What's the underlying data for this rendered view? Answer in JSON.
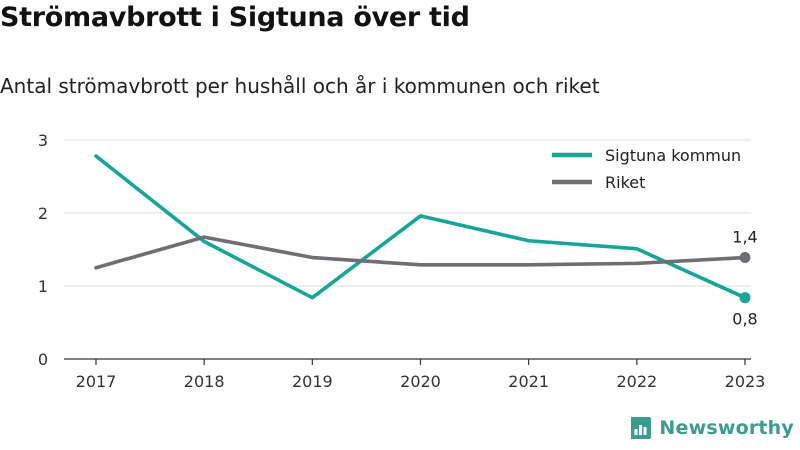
{
  "header": {
    "title": "Strömavbrott i Sigtuna över tid",
    "subtitle": "Antal strömavbrott per hushåll och år i kommunen och riket"
  },
  "brand": {
    "name": "Newsworthy",
    "icon": "newsworthy-logo-icon",
    "color": "#3c9d8f"
  },
  "chart_data": {
    "type": "line",
    "categories": [
      "2017",
      "2018",
      "2019",
      "2020",
      "2021",
      "2022",
      "2023"
    ],
    "series": [
      {
        "name": "Sigtuna kommun",
        "color": "#14a697",
        "values": [
          2.78,
          1.61,
          0.84,
          1.96,
          1.62,
          1.51,
          0.84
        ],
        "end_label": "0,8",
        "end_label_position": "below"
      },
      {
        "name": "Riket",
        "color": "#6e6e73",
        "values": [
          1.25,
          1.67,
          1.39,
          1.29,
          1.29,
          1.31,
          1.39
        ],
        "end_label": "1,4",
        "end_label_position": "above"
      }
    ],
    "y_ticks": [
      "0",
      "1",
      "2",
      "3"
    ],
    "ylim": [
      0,
      3
    ],
    "grid": true,
    "legend": "top-right"
  }
}
